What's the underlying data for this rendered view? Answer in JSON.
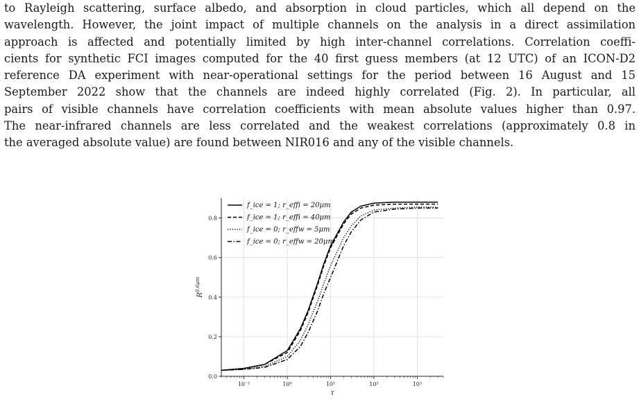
{
  "paragraph": {
    "lines": [
      "to Rayleigh scattering, surface albedo, and absorption in cloud particles, which all depend on the",
      "wavelength. However, the joint impact of multiple channels on the analysis in a direct assimilation",
      "approach is affected and potentially limited by high inter-channel correlations. Correlation coeffi-",
      "cients for synthetic FCI images computed for the 40 first guess members (at 12 UTC) of an ICON-D2",
      "reference DA experiment with near-operational settings for the period between 16 August and 15",
      "September 2022 show that the channels are indeed highly correlated (Fig. 2). In particular, all",
      "pairs of visible channels have correlation coefficients with mean absolute values higher than 0.97.",
      "The near-infrared channels are less correlated and the weakest correlations (approximately 0.8 in",
      "the averaged absolute value) are found between NIR016 and any of the visible channels."
    ]
  },
  "chart_data": {
    "type": "line",
    "xlabel": "τ",
    "ylabel": "R^0.6μm",
    "x_scale": "log",
    "xlim": [
      0.03,
      4000
    ],
    "ylim": [
      0.0,
      0.9
    ],
    "grid": true,
    "legend_position": "top-left",
    "x_ticks": [
      "10⁻¹",
      "10⁰",
      "10¹",
      "10²",
      "10³"
    ],
    "x_tick_values": [
      0.1,
      1,
      10,
      100,
      1000
    ],
    "y_ticks": [
      "0.0",
      "0.2",
      "0.4",
      "0.6",
      "0.8"
    ],
    "y_tick_values": [
      0.0,
      0.2,
      0.4,
      0.6,
      0.8
    ],
    "series": [
      {
        "name": "f_ice = 1; r_effi = 20μm",
        "style": "solid",
        "points": [
          [
            0.03,
            0.03
          ],
          [
            0.1,
            0.04
          ],
          [
            0.3,
            0.06
          ],
          [
            1,
            0.13
          ],
          [
            2,
            0.24
          ],
          [
            3,
            0.33
          ],
          [
            5,
            0.47
          ],
          [
            7,
            0.57
          ],
          [
            10,
            0.66
          ],
          [
            20,
            0.78
          ],
          [
            30,
            0.83
          ],
          [
            50,
            0.86
          ],
          [
            100,
            0.875
          ],
          [
            300,
            0.88
          ],
          [
            1000,
            0.88
          ],
          [
            3000,
            0.88
          ]
        ]
      },
      {
        "name": "f_ice = 1; r_effi = 40μm",
        "style": "dashed",
        "points": [
          [
            0.03,
            0.03
          ],
          [
            0.1,
            0.04
          ],
          [
            0.3,
            0.06
          ],
          [
            1,
            0.12
          ],
          [
            2,
            0.23
          ],
          [
            3,
            0.32
          ],
          [
            5,
            0.46
          ],
          [
            7,
            0.56
          ],
          [
            10,
            0.65
          ],
          [
            20,
            0.77
          ],
          [
            30,
            0.82
          ],
          [
            50,
            0.85
          ],
          [
            100,
            0.865
          ],
          [
            300,
            0.87
          ],
          [
            1000,
            0.87
          ],
          [
            3000,
            0.87
          ]
        ]
      },
      {
        "name": "f_ice = 0; r_effw = 5μm",
        "style": "dotted",
        "points": [
          [
            0.03,
            0.03
          ],
          [
            0.1,
            0.035
          ],
          [
            0.3,
            0.05
          ],
          [
            1,
            0.1
          ],
          [
            2,
            0.18
          ],
          [
            3,
            0.26
          ],
          [
            5,
            0.38
          ],
          [
            7,
            0.47
          ],
          [
            10,
            0.56
          ],
          [
            20,
            0.7
          ],
          [
            30,
            0.76
          ],
          [
            50,
            0.81
          ],
          [
            100,
            0.84
          ],
          [
            300,
            0.85
          ],
          [
            1000,
            0.855
          ],
          [
            3000,
            0.855
          ]
        ]
      },
      {
        "name": "f_ice = 0; r_effw = 20μm",
        "style": "dashdot",
        "points": [
          [
            0.03,
            0.03
          ],
          [
            0.1,
            0.035
          ],
          [
            0.3,
            0.045
          ],
          [
            1,
            0.085
          ],
          [
            2,
            0.15
          ],
          [
            3,
            0.22
          ],
          [
            5,
            0.33
          ],
          [
            7,
            0.42
          ],
          [
            10,
            0.5
          ],
          [
            20,
            0.66
          ],
          [
            30,
            0.73
          ],
          [
            50,
            0.79
          ],
          [
            100,
            0.83
          ],
          [
            300,
            0.845
          ],
          [
            1000,
            0.85
          ],
          [
            3000,
            0.85
          ]
        ]
      }
    ]
  }
}
